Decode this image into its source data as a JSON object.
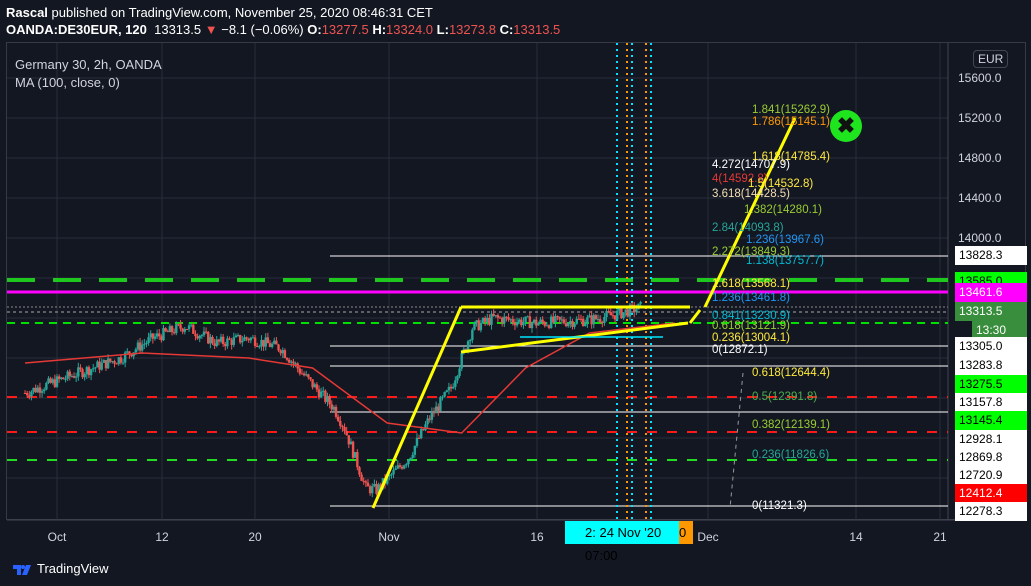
{
  "header": {
    "author": "Rascal",
    "published": "published on TradingView.com, November 25, 2020 08:46:31 CET",
    "symbol": "OANDA:DE30EUR, 120",
    "price": "13313.5",
    "change": "−8.1 (−0.06%)",
    "o_label": "O:",
    "o": "13277.5",
    "h_label": "H:",
    "h": "13324.0",
    "l_label": "L:",
    "l": "13273.8",
    "c_label": "C:",
    "c": "13313.5"
  },
  "legend": {
    "title": "Germany 30, 2h, OANDA",
    "indicator": "MA (100, close, 0)"
  },
  "currency": "EUR",
  "price_ticks": [
    "15600.0",
    "15200.0",
    "14800.0",
    "14400.0",
    "14000.0"
  ],
  "price_labels": [
    {
      "text": "13828.3",
      "bg": "#ffffff",
      "fg": "#000000"
    },
    {
      "text": "13585.0",
      "bg": "#00ff00",
      "fg": "#000000"
    },
    {
      "text": "13461.6",
      "bg": "#ff00ff",
      "fg": "#ffffff"
    },
    {
      "text": "13313.5",
      "bg": "#388e3c",
      "fg": "#ffffff"
    },
    {
      "text": "13:30",
      "bg": "#388e3c",
      "fg": "#ffffff"
    },
    {
      "text": "13305.0",
      "bg": "#ffffff",
      "fg": "#000000"
    },
    {
      "text": "13283.8",
      "bg": "#ffffff",
      "fg": "#000000"
    },
    {
      "text": "13275.5",
      "bg": "#00ff00",
      "fg": "#000000"
    },
    {
      "text": "13157.8",
      "bg": "#ffffff",
      "fg": "#000000"
    },
    {
      "text": "13145.4",
      "bg": "#00ff00",
      "fg": "#000000"
    },
    {
      "text": "12928.1",
      "bg": "#ffffff",
      "fg": "#000000"
    },
    {
      "text": "12869.8",
      "bg": "#ffffff",
      "fg": "#000000"
    },
    {
      "text": "12720.9",
      "bg": "#ffffff",
      "fg": "#000000"
    },
    {
      "text": "12412.4",
      "bg": "#ff0000",
      "fg": "#ffffff"
    },
    {
      "text": "12278.3",
      "bg": "#ffffff",
      "fg": "#000000"
    }
  ],
  "time_labels": [
    "Oct",
    "12",
    "20",
    "Nov",
    "16",
    "Dec",
    "14",
    "21"
  ],
  "crosshair_time": {
    "left": "2:",
    "value": "24 Nov '20   07:00",
    "right": "0"
  },
  "fib_labels": [
    {
      "text": "1.841(15262.9)",
      "color": "#9acd32"
    },
    {
      "text": "1.786(15145.1)",
      "color": "#ff9800"
    },
    {
      "text": "1.618(14785.4)",
      "color": "#ffeb3b"
    },
    {
      "text": "4.272(14707.9)",
      "color": "#ffffff"
    },
    {
      "text": "4(14592.8)",
      "color": "#e53935"
    },
    {
      "text": "1.5(14532.8)",
      "color": "#ffeb3b"
    },
    {
      "text": "3.618(14428.5)",
      "color": "#f5deb3"
    },
    {
      "text": "1.382(14280.1)",
      "color": "#9acd32"
    },
    {
      "text": "2.84(14093.8)",
      "color": "#26a69a"
    },
    {
      "text": "1.236(13967.6)",
      "color": "#2196f3"
    },
    {
      "text": "2.272(13849.3)",
      "color": "#9acd32"
    },
    {
      "text": "1.138(13757.7)",
      "color": "#00bcd4"
    },
    {
      "text": "1.618(13568.1)",
      "color": "#ffeb3b"
    },
    {
      "text": "1.236(13461.8)",
      "color": "#2196f3"
    },
    {
      "text": "0.841(13230.9)",
      "color": "#00bcd4"
    },
    {
      "text": "0.618(13121.9)",
      "color": "#9acd32"
    },
    {
      "text": "0.236(13004.1)",
      "color": "#ffeb3b"
    },
    {
      "text": "0(12872.1)",
      "color": "#ffffff"
    },
    {
      "text": "0.618(12644.4)",
      "color": "#ffeb3b"
    },
    {
      "text": "0.5(12391.8)",
      "color": "#4caf50"
    },
    {
      "text": "0.382(12139.1)",
      "color": "#9acd32"
    },
    {
      "text": "0.236(11826.6)",
      "color": "#26a69a"
    },
    {
      "text": "0(11321.3)",
      "color": "#ffffff"
    }
  ],
  "footer": {
    "brand": "TradingView"
  },
  "colors": {
    "up": "#26a69a",
    "down": "#ef5350",
    "ma": "#e53935",
    "trend": "#ffff00"
  },
  "chart_data": {
    "type": "candlestick",
    "title": "Germany 30, 2h, OANDA",
    "ylabel": "EUR",
    "ylim": [
      11000,
      15800
    ],
    "x_unit": "days since Oct 1 2020",
    "close_path": [
      [
        -3,
        12450
      ],
      [
        2,
        12650
      ],
      [
        6,
        12800
      ],
      [
        9,
        13000
      ],
      [
        12,
        13120
      ],
      [
        15,
        12950
      ],
      [
        18,
        13000
      ],
      [
        21,
        12900
      ],
      [
        23,
        12650
      ],
      [
        26,
        12300
      ],
      [
        27,
        12100
      ],
      [
        29,
        11500
      ],
      [
        30,
        11480
      ],
      [
        33,
        11800
      ],
      [
        35,
        12200
      ],
      [
        37,
        12500
      ],
      [
        39,
        13100
      ],
      [
        41,
        13200
      ],
      [
        45,
        13150
      ],
      [
        50,
        13180
      ],
      [
        53,
        13250
      ],
      [
        55,
        13313.5
      ]
    ],
    "ma_path": [
      [
        -3,
        12750
      ],
      [
        8,
        12850
      ],
      [
        18,
        12800
      ],
      [
        24,
        12700
      ],
      [
        31,
        12150
      ],
      [
        38,
        12050
      ],
      [
        44,
        12700
      ],
      [
        50,
        13050
      ],
      [
        58,
        13150
      ]
    ]
  }
}
